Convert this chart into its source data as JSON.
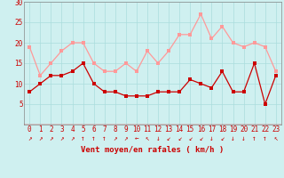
{
  "x": [
    0,
    1,
    2,
    3,
    4,
    5,
    6,
    7,
    8,
    9,
    10,
    11,
    12,
    13,
    14,
    15,
    16,
    17,
    18,
    19,
    20,
    21,
    22,
    23
  ],
  "y_mean": [
    8,
    10,
    12,
    12,
    13,
    15,
    10,
    8,
    8,
    7,
    7,
    7,
    8,
    8,
    8,
    11,
    10,
    9,
    13,
    8,
    8,
    15,
    5,
    12
  ],
  "y_gust": [
    19,
    12,
    15,
    18,
    20,
    20,
    15,
    13,
    13,
    15,
    13,
    18,
    15,
    18,
    22,
    22,
    27,
    21,
    24,
    20,
    19,
    20,
    19,
    13
  ],
  "wind_arrows": [
    "↗",
    "↗",
    "↗",
    "↗",
    "↗",
    "↑",
    "↑",
    "↑",
    "↗",
    "↗",
    "←",
    "↖",
    "↓",
    "↙",
    "↙",
    "↙",
    "↙",
    "↓",
    "↙",
    "↓",
    "↓",
    "↑",
    "↑",
    "↖"
  ],
  "xlabel": "Vent moyen/en rafales ( km/h )",
  "ylim": [
    0,
    30
  ],
  "yticks": [
    0,
    5,
    10,
    15,
    20,
    25,
    30
  ],
  "bg_color": "#cff0f0",
  "grid_color": "#aadddd",
  "line_mean_color": "#cc0000",
  "line_gust_color": "#ff9999",
  "marker_size": 2.2,
  "line_width": 0.9,
  "xlabel_fontsize": 6.5,
  "tick_fontsize": 5.5
}
